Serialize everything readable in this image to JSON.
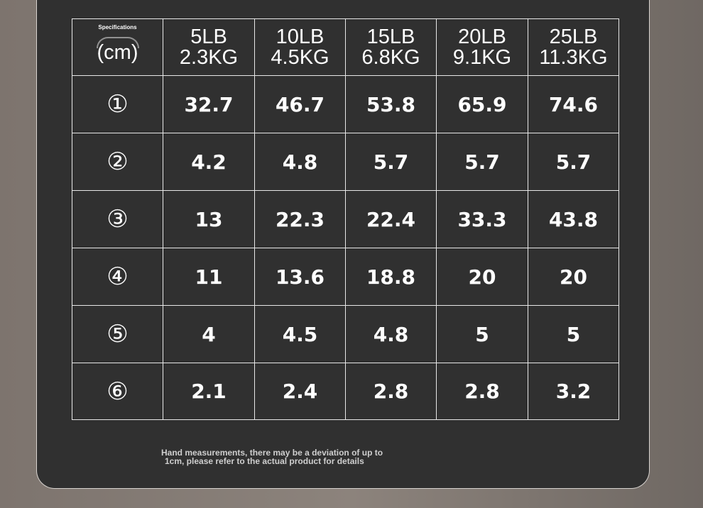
{
  "table": {
    "corner": {
      "title": "Specifications",
      "unit": "(cm)"
    },
    "columns": [
      {
        "lb": "5LB",
        "kg": "2.3KG"
      },
      {
        "lb": "10LB",
        "kg": "4.5KG"
      },
      {
        "lb": "15LB",
        "kg": "6.8KG"
      },
      {
        "lb": "20LB",
        "kg": "9.1KG"
      },
      {
        "lb": "25LB",
        "kg": "11.3KG"
      }
    ],
    "rows": [
      {
        "label": "①",
        "values": [
          32.7,
          46.7,
          53.8,
          65.9,
          74.6
        ]
      },
      {
        "label": "②",
        "values": [
          4.2,
          4.8,
          5.7,
          5.7,
          5.7
        ]
      },
      {
        "label": "③",
        "values": [
          13,
          22.3,
          22.4,
          33.3,
          43.8
        ]
      },
      {
        "label": "④",
        "values": [
          11,
          13.6,
          18.8,
          20,
          20
        ]
      },
      {
        "label": "⑤",
        "values": [
          4,
          4.5,
          4.8,
          5,
          5
        ]
      },
      {
        "label": "⑥",
        "values": [
          2.1,
          2.4,
          2.8,
          2.8,
          3.2
        ]
      }
    ]
  },
  "note": {
    "lines": [
      "Hand measurements, there may be a deviation of up to",
      "1cm, please refer to the actual product for details"
    ]
  }
}
